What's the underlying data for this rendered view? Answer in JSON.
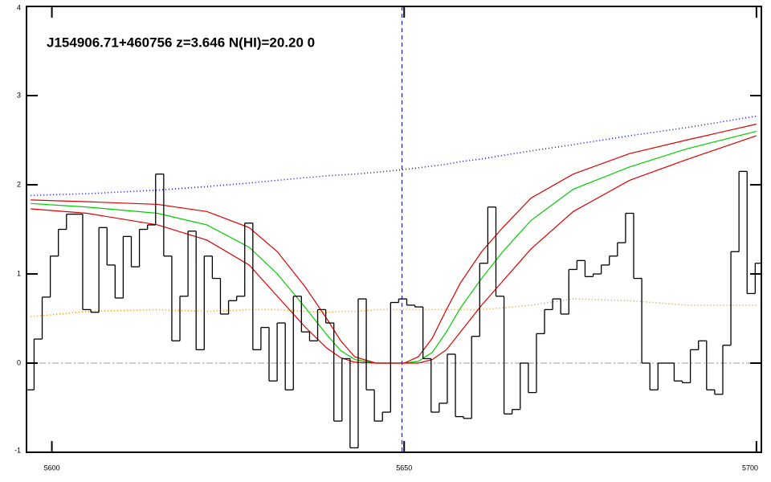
{
  "chart_data": {
    "type": "spectrum",
    "title": "J154906.71+460756 z=3.646 N(HI)=20.20 0",
    "xlim": [
      5596.4,
      5700.7
    ],
    "ylim": [
      -1,
      4
    ],
    "xticks": [
      5600,
      5650,
      5700
    ],
    "yticks": [
      -1,
      0,
      1,
      2,
      3,
      4
    ],
    "zero_line": 0,
    "marker_line": 5649.7,
    "flux": {
      "color": "#000000",
      "x": [
        5596.9,
        5598.05,
        5599.2,
        5600.35,
        5601.5,
        5602.65,
        5603.8,
        5604.95,
        5606.1,
        5607.25,
        5608.4,
        5609.55,
        5610.7,
        5611.85,
        5613.0,
        5614.15,
        5615.3,
        5616.45,
        5617.6,
        5618.75,
        5619.9,
        5621.05,
        5622.2,
        5623.35,
        5624.5,
        5625.65,
        5626.8,
        5627.95,
        5629.1,
        5630.25,
        5631.4,
        5632.55,
        5633.7,
        5634.85,
        5636.0,
        5637.15,
        5638.3,
        5639.45,
        5640.6,
        5641.75,
        5642.9,
        5644.05,
        5645.2,
        5646.35,
        5647.5,
        5648.65,
        5649.8,
        5650.95,
        5652.1,
        5653.25,
        5654.4,
        5655.55,
        5656.7,
        5657.85,
        5659.0,
        5660.15,
        5661.3,
        5662.45,
        5663.6,
        5664.75,
        5665.9,
        5667.05,
        5668.2,
        5669.35,
        5670.5,
        5671.65,
        5672.8,
        5673.95,
        5675.1,
        5676.25,
        5677.4,
        5678.55,
        5679.7,
        5680.85,
        5682.0,
        5683.15,
        5684.3,
        5685.45,
        5686.6,
        5687.75,
        5688.9,
        5690.05,
        5691.2,
        5692.35,
        5693.5,
        5694.65,
        5695.8,
        5696.95,
        5698.1,
        5699.25,
        5700.4
      ],
      "values": [
        -0.3,
        0.27,
        0.74,
        1.2,
        1.5,
        1.67,
        1.67,
        0.6,
        0.57,
        1.52,
        1.1,
        0.73,
        1.42,
        1.08,
        1.5,
        1.55,
        2.12,
        1.2,
        0.25,
        0.75,
        1.48,
        0.15,
        1.2,
        0.95,
        0.55,
        0.7,
        0.75,
        1.57,
        0.15,
        0.4,
        -0.2,
        0.45,
        -0.3,
        0.75,
        0.35,
        0.25,
        0.6,
        0.45,
        -0.65,
        0.05,
        -0.95,
        0.72,
        -0.3,
        -0.65,
        -0.55,
        0.68,
        0.72,
        0.65,
        0.63,
        0.05,
        -0.55,
        -0.45,
        0.1,
        -0.6,
        -0.62,
        0.3,
        1.12,
        1.75,
        0.75,
        -0.57,
        -0.52,
        0.0,
        -0.33,
        0.33,
        0.6,
        0.72,
        0.55,
        1.05,
        1.15,
        0.97,
        1.0,
        1.1,
        1.2,
        1.35,
        1.68,
        0.95,
        0.0,
        -0.3,
        0.0,
        0.0,
        -0.2,
        -0.22,
        0.15,
        0.25,
        -0.3,
        -0.35,
        0.2,
        1.25,
        2.15,
        0.78,
        1.12
      ]
    },
    "model_x": [
      5597,
      5605,
      5615,
      5622,
      5628,
      5632,
      5636,
      5639,
      5641,
      5643,
      5646,
      5650,
      5652,
      5654,
      5656,
      5658,
      5661,
      5664,
      5668,
      5674,
      5682,
      5690,
      5700
    ],
    "series": [
      {
        "color": "#0000ff",
        "dotted": true,
        "values": [
          1.88,
          1.9,
          1.94,
          1.98,
          2.02,
          2.05,
          2.08,
          2.1,
          2.11,
          2.12,
          2.14,
          2.17,
          2.19,
          2.21,
          2.23,
          2.26,
          2.29,
          2.33,
          2.38,
          2.45,
          2.55,
          2.64,
          2.77
        ]
      },
      {
        "color": "#ff8c00",
        "dotted": true,
        "values": [
          0.52,
          0.58,
          0.6,
          0.58,
          0.6,
          0.6,
          0.58,
          0.57,
          0.58,
          0.58,
          0.6,
          0.6,
          0.6,
          0.6,
          0.6,
          0.6,
          0.6,
          0.62,
          0.65,
          0.72,
          0.7,
          0.65,
          0.65
        ]
      },
      {
        "color": "#00cc00",
        "dotted": false,
        "values": [
          1.79,
          1.75,
          1.68,
          1.55,
          1.3,
          1.0,
          0.62,
          0.32,
          0.14,
          0.04,
          0.0,
          0.0,
          0.02,
          0.12,
          0.35,
          0.62,
          0.95,
          1.25,
          1.6,
          1.95,
          2.2,
          2.4,
          2.6
        ]
      },
      {
        "color": "#dd0000",
        "dotted": false,
        "values": [
          1.83,
          1.81,
          1.78,
          1.7,
          1.52,
          1.25,
          0.85,
          0.5,
          0.25,
          0.07,
          0.0,
          0.0,
          0.07,
          0.28,
          0.6,
          0.9,
          1.25,
          1.52,
          1.85,
          2.12,
          2.35,
          2.5,
          2.68
        ]
      },
      {
        "color": "#dd0000",
        "dotted": false,
        "values": [
          1.73,
          1.68,
          1.55,
          1.38,
          1.1,
          0.75,
          0.4,
          0.17,
          0.06,
          0.01,
          0.0,
          0.0,
          0.0,
          0.04,
          0.15,
          0.35,
          0.65,
          0.92,
          1.28,
          1.7,
          2.05,
          2.28,
          2.55
        ]
      }
    ]
  }
}
